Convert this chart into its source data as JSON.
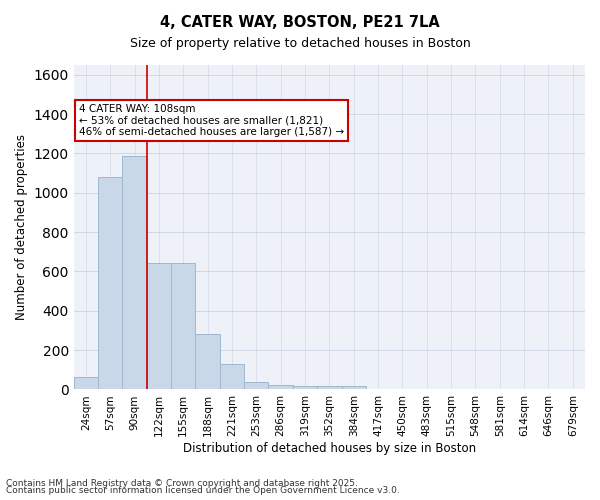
{
  "title1": "4, CATER WAY, BOSTON, PE21 7LA",
  "title2": "Size of property relative to detached houses in Boston",
  "xlabel": "Distribution of detached houses by size in Boston",
  "ylabel": "Number of detached properties",
  "bar_categories": [
    "24sqm",
    "57sqm",
    "90sqm",
    "122sqm",
    "155sqm",
    "188sqm",
    "221sqm",
    "253sqm",
    "286sqm",
    "319sqm",
    "352sqm",
    "384sqm",
    "417sqm",
    "450sqm",
    "483sqm",
    "515sqm",
    "548sqm",
    "581sqm",
    "614sqm",
    "646sqm",
    "679sqm"
  ],
  "bar_values": [
    65,
    1080,
    1185,
    645,
    645,
    280,
    130,
    38,
    25,
    20,
    20,
    20,
    0,
    0,
    0,
    0,
    0,
    0,
    0,
    0,
    0
  ],
  "bar_color": "#c8d8e8",
  "bar_edge_color": "#a0b8cc",
  "red_line_x": 2.5,
  "annotation_title": "4 CATER WAY: 108sqm",
  "annotation_line1": "← 53% of detached houses are smaller (1,821)",
  "annotation_line2": "46% of semi-detached houses are larger (1,587) →",
  "annotation_box_color": "#ffffff",
  "annotation_box_edge": "#cc0000",
  "red_line_color": "#cc0000",
  "ylim": [
    0,
    1650
  ],
  "yticks": [
    0,
    200,
    400,
    600,
    800,
    1000,
    1200,
    1400,
    1600
  ],
  "grid_color": "#d0d8e8",
  "bg_color": "#eef2f8",
  "footer1": "Contains HM Land Registry data © Crown copyright and database right 2025.",
  "footer2": "Contains public sector information licensed under the Open Government Licence v3.0."
}
